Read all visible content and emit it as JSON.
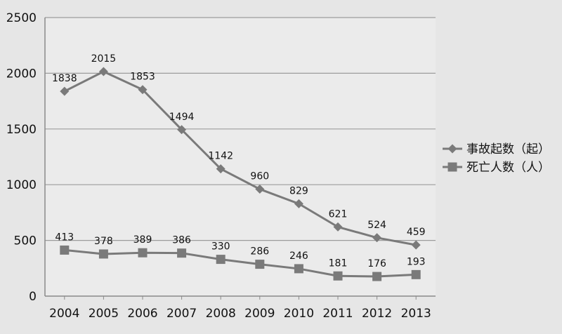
{
  "chart_data": {
    "type": "line",
    "title": "",
    "xlabel": "",
    "ylabel": "",
    "categories": [
      "2004",
      "2005",
      "2006",
      "2007",
      "2008",
      "2009",
      "2010",
      "2011",
      "2012",
      "2013"
    ],
    "ylim": [
      0,
      2500
    ],
    "yticks": [
      0,
      500,
      1000,
      1500,
      2000,
      2500
    ],
    "grid": "horizontal",
    "legend_position": "right",
    "series": [
      {
        "name": "事故起数（起）",
        "marker": "diamond",
        "color": "#7a7a7a",
        "values": [
          1838,
          2015,
          1853,
          1494,
          1142,
          960,
          829,
          621,
          524,
          459
        ]
      },
      {
        "name": "死亡人数（人）",
        "marker": "square",
        "color": "#7a7a7a",
        "values": [
          413,
          378,
          389,
          386,
          330,
          286,
          246,
          181,
          176,
          193
        ]
      }
    ]
  }
}
